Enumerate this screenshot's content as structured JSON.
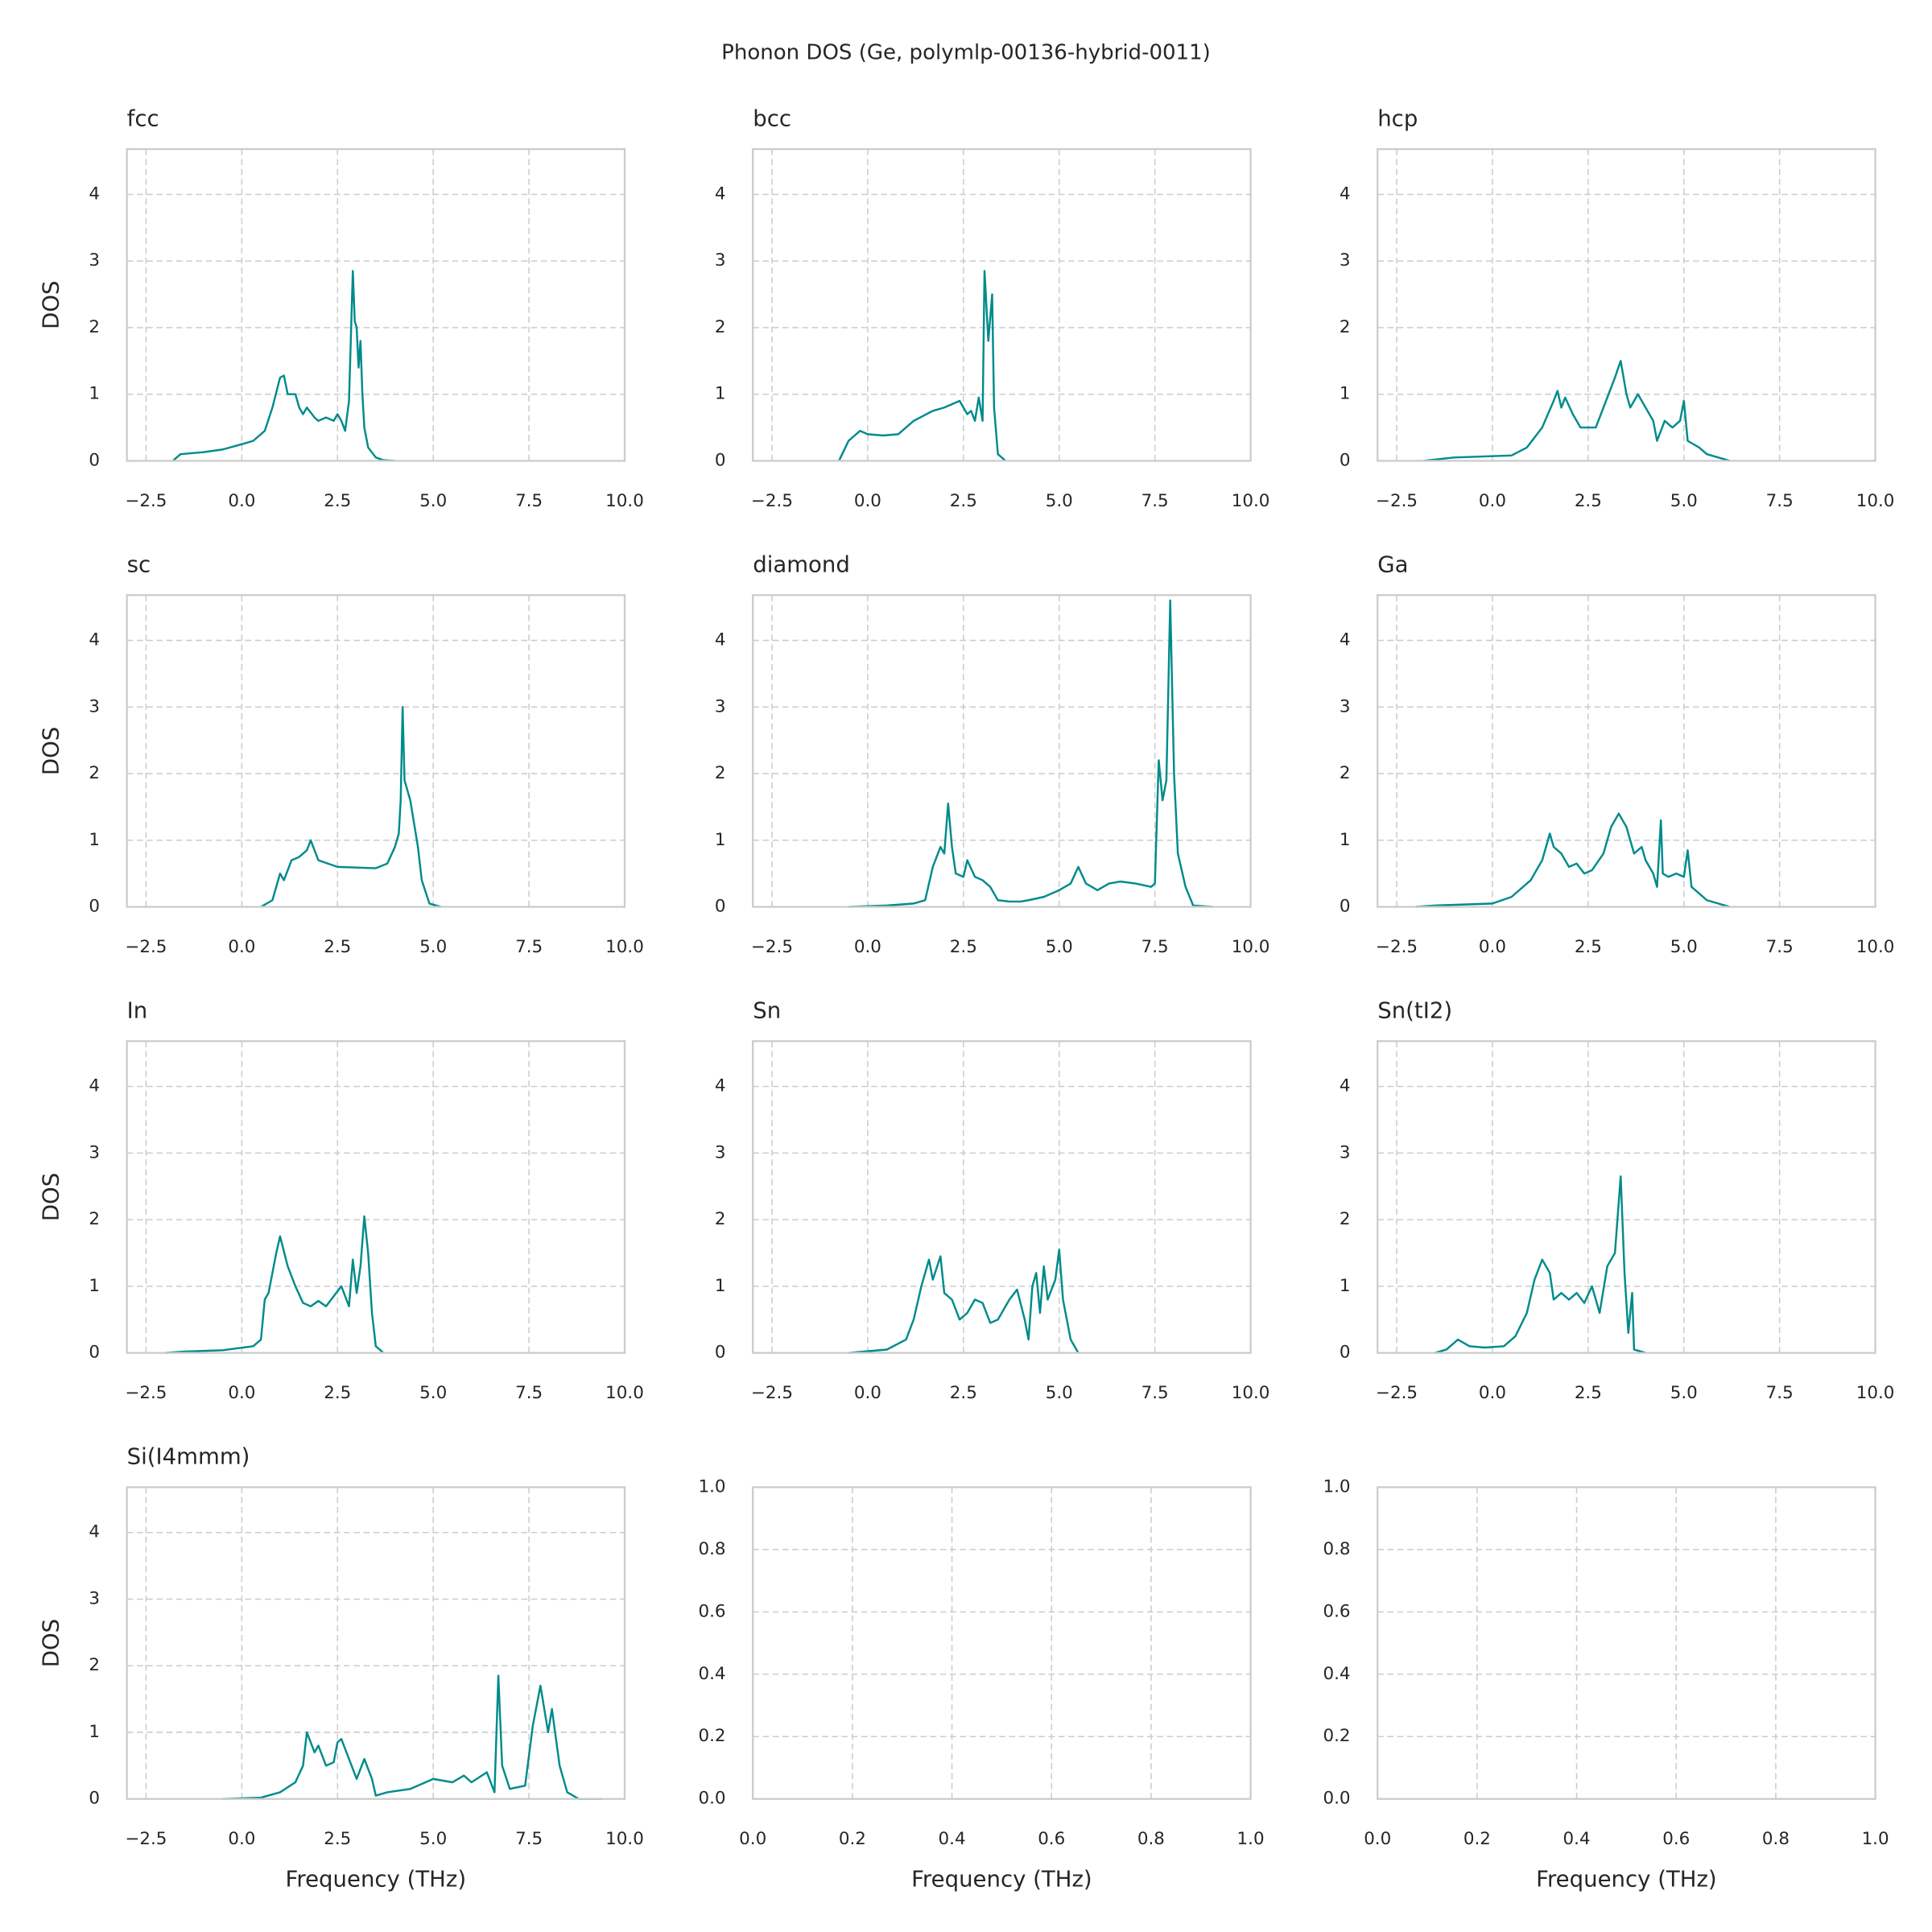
{
  "title": "Phonon DOS (Ge, polymlp-00136-hybrid-0011)",
  "chart_data": [
    {
      "type": "line",
      "title": "fcc",
      "ylabel": "DOS",
      "grid": true,
      "x": [
        -1.8,
        -1.6,
        -1.0,
        -0.5,
        0.0,
        0.3,
        0.6,
        0.8,
        1.0,
        1.1,
        1.2,
        1.4,
        1.5,
        1.6,
        1.7,
        1.9,
        2.0,
        2.2,
        2.4,
        2.5,
        2.6,
        2.7,
        2.8,
        2.9,
        2.95,
        3.0,
        3.05,
        3.1,
        3.15,
        3.2,
        3.3,
        3.5,
        3.7,
        4.0
      ],
      "series": [
        {
          "color": "#008b8b",
          "values": [
            0,
            0.1,
            0.13,
            0.17,
            0.25,
            0.3,
            0.45,
            0.8,
            1.25,
            1.28,
            1.0,
            1.0,
            0.8,
            0.7,
            0.8,
            0.65,
            0.6,
            0.65,
            0.6,
            0.7,
            0.6,
            0.45,
            0.9,
            2.85,
            2.1,
            2.0,
            1.4,
            1.8,
            1.0,
            0.5,
            0.2,
            0.05,
            0.01,
            0
          ]
        }
      ],
      "xlim": [
        -3.0,
        10.0
      ],
      "ylim": [
        0,
        4.68
      ],
      "xticks": [
        {
          "value": -2.5,
          "label": "−2.5"
        },
        {
          "value": 0,
          "label": "0.0"
        },
        2.5,
        {
          "value": 5,
          "label": "5.0"
        },
        7.5,
        {
          "value": 10,
          "label": "10.0"
        }
      ],
      "yticks": [
        0,
        1,
        2,
        3,
        4
      ]
    },
    {
      "type": "line",
      "title": "bcc",
      "grid": true,
      "x": [
        -0.75,
        -0.5,
        -0.2,
        0.0,
        0.4,
        0.8,
        1.2,
        1.7,
        2.0,
        2.4,
        2.6,
        2.7,
        2.8,
        2.9,
        3.0,
        3.05,
        3.15,
        3.25,
        3.3,
        3.4,
        3.6
      ],
      "series": [
        {
          "color": "#008b8b",
          "values": [
            0,
            0.3,
            0.45,
            0.4,
            0.38,
            0.4,
            0.6,
            0.75,
            0.8,
            0.9,
            0.7,
            0.75,
            0.6,
            0.95,
            0.6,
            2.85,
            1.8,
            2.5,
            0.8,
            0.1,
            0
          ]
        }
      ],
      "xlim": [
        -3.0,
        10.0
      ],
      "ylim": [
        0,
        4.68
      ],
      "xticks": [
        {
          "value": -2.5,
          "label": "−2.5"
        },
        {
          "value": 0,
          "label": "0.0"
        },
        2.5,
        {
          "value": 5,
          "label": "5.0"
        },
        7.5,
        {
          "value": 10,
          "label": "10.0"
        }
      ],
      "yticks": [
        0,
        1,
        2,
        3,
        4
      ]
    },
    {
      "type": "line",
      "title": "hcp",
      "grid": true,
      "x": [
        -1.8,
        -1.0,
        0.5,
        0.9,
        1.3,
        1.6,
        1.7,
        1.8,
        1.9,
        2.1,
        2.3,
        2.7,
        2.9,
        3.2,
        3.35,
        3.5,
        3.6,
        3.8,
        4.0,
        4.2,
        4.3,
        4.5,
        4.7,
        4.9,
        5.0,
        5.1,
        5.4,
        5.6,
        6.2
      ],
      "series": [
        {
          "color": "#008b8b",
          "values": [
            0,
            0.05,
            0.08,
            0.2,
            0.5,
            0.9,
            1.05,
            0.8,
            0.95,
            0.7,
            0.5,
            0.5,
            0.8,
            1.25,
            1.5,
            1.0,
            0.8,
            1.0,
            0.8,
            0.6,
            0.3,
            0.6,
            0.5,
            0.6,
            0.9,
            0.3,
            0.2,
            0.1,
            0
          ]
        }
      ],
      "xlim": [
        -3.0,
        10.0
      ],
      "ylim": [
        0,
        4.68
      ],
      "xticks": [
        {
          "value": -2.5,
          "label": "−2.5"
        },
        {
          "value": 0,
          "label": "0.0"
        },
        2.5,
        {
          "value": 5,
          "label": "5.0"
        },
        7.5,
        {
          "value": 10,
          "label": "10.0"
        }
      ],
      "yticks": [
        0,
        1,
        2,
        3,
        4
      ]
    },
    {
      "type": "line",
      "title": "sc",
      "ylabel": "DOS",
      "grid": true,
      "x": [
        0.5,
        0.8,
        1.0,
        1.1,
        1.3,
        1.5,
        1.7,
        1.8,
        2.0,
        2.5,
        3.5,
        3.8,
        4.0,
        4.1,
        4.15,
        4.2,
        4.25,
        4.4,
        4.6,
        4.7,
        4.9,
        5.2
      ],
      "series": [
        {
          "color": "#008b8b",
          "values": [
            0,
            0.1,
            0.5,
            0.4,
            0.7,
            0.75,
            0.85,
            1.0,
            0.7,
            0.6,
            0.58,
            0.65,
            0.9,
            1.1,
            1.6,
            3.0,
            1.9,
            1.6,
            0.9,
            0.4,
            0.05,
            0
          ]
        }
      ],
      "xlim": [
        -3.0,
        10.0
      ],
      "ylim": [
        0,
        4.68
      ],
      "xticks": [
        {
          "value": -2.5,
          "label": "−2.5"
        },
        {
          "value": 0,
          "label": "0.0"
        },
        2.5,
        {
          "value": 5,
          "label": "5.0"
        },
        7.5,
        {
          "value": 10,
          "label": "10.0"
        }
      ],
      "yticks": [
        0,
        1,
        2,
        3,
        4
      ]
    },
    {
      "type": "line",
      "title": "diamond",
      "grid": true,
      "x": [
        -0.5,
        0.5,
        1.2,
        1.5,
        1.7,
        1.9,
        2.0,
        2.1,
        2.2,
        2.3,
        2.5,
        2.6,
        2.8,
        3.0,
        3.2,
        3.4,
        3.7,
        4.0,
        4.2,
        4.6,
        5.0,
        5.3,
        5.5,
        5.7,
        6.0,
        6.3,
        6.6,
        7.0,
        7.4,
        7.5,
        7.6,
        7.7,
        7.8,
        7.9,
        8.0,
        8.1,
        8.3,
        8.5,
        9.0
      ],
      "series": [
        {
          "color": "#008b8b",
          "values": [
            0,
            0.02,
            0.05,
            0.1,
            0.6,
            0.9,
            0.8,
            1.55,
            0.9,
            0.5,
            0.45,
            0.7,
            0.45,
            0.4,
            0.3,
            0.1,
            0.08,
            0.08,
            0.1,
            0.15,
            0.25,
            0.35,
            0.6,
            0.35,
            0.25,
            0.35,
            0.38,
            0.35,
            0.3,
            0.35,
            2.2,
            1.6,
            1.9,
            4.6,
            2.0,
            0.8,
            0.3,
            0.02,
            0
          ]
        }
      ],
      "xlim": [
        -3.0,
        10.0
      ],
      "ylim": [
        0,
        4.68
      ],
      "xticks": [
        {
          "value": -2.5,
          "label": "−2.5"
        },
        {
          "value": 0,
          "label": "0.0"
        },
        2.5,
        {
          "value": 5,
          "label": "5.0"
        },
        7.5,
        {
          "value": 10,
          "label": "10.0"
        }
      ],
      "yticks": [
        0,
        1,
        2,
        3,
        4
      ]
    },
    {
      "type": "line",
      "title": "Ga",
      "grid": true,
      "x": [
        -2.0,
        -1.5,
        0.0,
        0.5,
        1.0,
        1.3,
        1.5,
        1.6,
        1.8,
        2.0,
        2.2,
        2.4,
        2.6,
        2.9,
        3.1,
        3.3,
        3.5,
        3.7,
        3.9,
        4.0,
        4.2,
        4.3,
        4.4,
        4.45,
        4.6,
        4.8,
        5.0,
        5.1,
        5.2,
        5.4,
        5.6,
        6.2
      ],
      "series": [
        {
          "color": "#008b8b",
          "values": [
            0,
            0.02,
            0.05,
            0.15,
            0.4,
            0.7,
            1.1,
            0.9,
            0.8,
            0.6,
            0.65,
            0.5,
            0.55,
            0.8,
            1.2,
            1.4,
            1.2,
            0.8,
            0.9,
            0.7,
            0.5,
            0.3,
            1.3,
            0.5,
            0.45,
            0.5,
            0.45,
            0.85,
            0.3,
            0.2,
            0.1,
            0
          ]
        }
      ],
      "xlim": [
        -3.0,
        10.0
      ],
      "ylim": [
        0,
        4.68
      ],
      "xticks": [
        {
          "value": -2.5,
          "label": "−2.5"
        },
        {
          "value": 0,
          "label": "0.0"
        },
        2.5,
        {
          "value": 5,
          "label": "5.0"
        },
        7.5,
        {
          "value": 10,
          "label": "10.0"
        }
      ],
      "yticks": [
        0,
        1,
        2,
        3,
        4
      ]
    },
    {
      "type": "line",
      "title": "In",
      "ylabel": "DOS",
      "grid": true,
      "x": [
        -2.0,
        -1.5,
        -0.5,
        0.3,
        0.5,
        0.6,
        0.7,
        0.8,
        0.9,
        1.0,
        1.2,
        1.4,
        1.6,
        1.8,
        2.0,
        2.2,
        2.4,
        2.6,
        2.8,
        2.9,
        3.0,
        3.1,
        3.2,
        3.3,
        3.4,
        3.5,
        3.7
      ],
      "series": [
        {
          "color": "#008b8b",
          "values": [
            0,
            0.02,
            0.04,
            0.1,
            0.2,
            0.8,
            0.9,
            1.2,
            1.5,
            1.75,
            1.3,
            1.0,
            0.75,
            0.7,
            0.78,
            0.7,
            0.85,
            1.0,
            0.7,
            1.4,
            0.9,
            1.3,
            2.05,
            1.5,
            0.6,
            0.1,
            0
          ]
        }
      ],
      "xlim": [
        -3.0,
        10.0
      ],
      "ylim": [
        0,
        4.68
      ],
      "xticks": [
        {
          "value": -2.5,
          "label": "−2.5"
        },
        {
          "value": 0,
          "label": "0.0"
        },
        2.5,
        {
          "value": 5,
          "label": "5.0"
        },
        7.5,
        {
          "value": 10,
          "label": "10.0"
        }
      ],
      "yticks": [
        0,
        1,
        2,
        3,
        4
      ]
    },
    {
      "type": "line",
      "title": "Sn",
      "grid": true,
      "x": [
        -0.5,
        0.5,
        1.0,
        1.2,
        1.4,
        1.6,
        1.7,
        1.9,
        2.0,
        2.2,
        2.4,
        2.6,
        2.8,
        3.0,
        3.2,
        3.4,
        3.7,
        3.9,
        4.1,
        4.2,
        4.3,
        4.4,
        4.5,
        4.6,
        4.7,
        4.9,
        5.0,
        5.1,
        5.3,
        5.5
      ],
      "series": [
        {
          "color": "#008b8b",
          "values": [
            0,
            0.05,
            0.2,
            0.5,
            1.0,
            1.4,
            1.1,
            1.45,
            0.9,
            0.8,
            0.5,
            0.6,
            0.8,
            0.75,
            0.45,
            0.5,
            0.8,
            0.95,
            0.5,
            0.2,
            1.0,
            1.2,
            0.6,
            1.3,
            0.8,
            1.1,
            1.55,
            0.8,
            0.2,
            0
          ]
        }
      ],
      "xlim": [
        -3.0,
        10.0
      ],
      "ylim": [
        0,
        4.68
      ],
      "xticks": [
        {
          "value": -2.5,
          "label": "−2.5"
        },
        {
          "value": 0,
          "label": "0.0"
        },
        2.5,
        {
          "value": 5,
          "label": "5.0"
        },
        7.5,
        {
          "value": 10,
          "label": "10.0"
        }
      ],
      "yticks": [
        0,
        1,
        2,
        3,
        4
      ]
    },
    {
      "type": "line",
      "title": "Sn(tI2)",
      "grid": true,
      "x": [
        -1.5,
        -1.2,
        -0.9,
        -0.6,
        -0.2,
        0.3,
        0.6,
        0.9,
        1.1,
        1.3,
        1.5,
        1.6,
        1.8,
        2.0,
        2.2,
        2.4,
        2.6,
        2.8,
        3.0,
        3.2,
        3.35,
        3.45,
        3.55,
        3.65,
        3.7,
        4.0
      ],
      "series": [
        {
          "color": "#008b8b",
          "values": [
            0,
            0.05,
            0.2,
            0.1,
            0.08,
            0.1,
            0.25,
            0.6,
            1.1,
            1.4,
            1.2,
            0.8,
            0.9,
            0.8,
            0.9,
            0.75,
            1.0,
            0.6,
            1.3,
            1.5,
            2.65,
            1.2,
            0.3,
            0.9,
            0.05,
            0
          ]
        }
      ],
      "xlim": [
        -3.0,
        10.0
      ],
      "ylim": [
        0,
        4.68
      ],
      "xticks": [
        {
          "value": -2.5,
          "label": "−2.5"
        },
        {
          "value": 0,
          "label": "0.0"
        },
        2.5,
        {
          "value": 5,
          "label": "5.0"
        },
        7.5,
        {
          "value": 10,
          "label": "10.0"
        }
      ],
      "yticks": [
        0,
        1,
        2,
        3,
        4
      ]
    },
    {
      "type": "line",
      "title": "Si(I4mmm)",
      "ylabel": "DOS",
      "xlabel": "Frequency (THz)",
      "grid": true,
      "x": [
        -0.5,
        0.5,
        1.0,
        1.4,
        1.6,
        1.7,
        1.9,
        2.0,
        2.2,
        2.4,
        2.5,
        2.6,
        2.8,
        3.0,
        3.2,
        3.4,
        3.5,
        3.8,
        4.4,
        4.8,
        5.0,
        5.5,
        5.8,
        6.0,
        6.4,
        6.6,
        6.7,
        6.8,
        7.0,
        7.4,
        7.6,
        7.8,
        8.0,
        8.1,
        8.3,
        8.5,
        8.8,
        9.4
      ],
      "series": [
        {
          "color": "#008b8b",
          "values": [
            0,
            0.02,
            0.1,
            0.25,
            0.5,
            1.0,
            0.7,
            0.8,
            0.5,
            0.55,
            0.85,
            0.9,
            0.6,
            0.3,
            0.6,
            0.3,
            0.05,
            0.1,
            0.15,
            0.25,
            0.3,
            0.25,
            0.35,
            0.25,
            0.4,
            0.1,
            1.85,
            0.5,
            0.15,
            0.2,
            1.1,
            1.7,
            1.0,
            1.35,
            0.5,
            0.1,
            0,
            0
          ]
        }
      ],
      "xlim": [
        -3.0,
        10.0
      ],
      "ylim": [
        0,
        4.68
      ],
      "xticks": [
        {
          "value": -2.5,
          "label": "−2.5"
        },
        {
          "value": 0,
          "label": "0.0"
        },
        2.5,
        {
          "value": 5,
          "label": "5.0"
        },
        7.5,
        {
          "value": 10,
          "label": "10.0"
        }
      ],
      "yticks": [
        0,
        1,
        2,
        3,
        4
      ]
    },
    {
      "type": "line",
      "xlabel": "Frequency (THz)",
      "grid": true,
      "xlim": [
        0,
        1
      ],
      "ylim": [
        0,
        1
      ],
      "xticks": [
        {
          "value": 0,
          "label": "0.0"
        },
        0.2,
        0.4,
        0.6,
        0.8,
        {
          "value": 1,
          "label": "1.0"
        }
      ],
      "yticks": [
        {
          "value": 0,
          "label": "0.0"
        },
        0.2,
        0.4,
        0.6,
        0.8,
        {
          "value": 1,
          "label": "1.0"
        }
      ]
    },
    {
      "type": "line",
      "xlabel": "Frequency (THz)",
      "grid": true,
      "xlim": [
        0,
        1
      ],
      "ylim": [
        0,
        1
      ],
      "xticks": [
        {
          "value": 0,
          "label": "0.0"
        },
        0.2,
        0.4,
        0.6,
        0.8,
        {
          "value": 1,
          "label": "1.0"
        }
      ],
      "yticks": [
        {
          "value": 0,
          "label": "0.0"
        },
        0.2,
        0.4,
        0.6,
        0.8,
        {
          "value": 1,
          "label": "1.0"
        }
      ]
    }
  ]
}
